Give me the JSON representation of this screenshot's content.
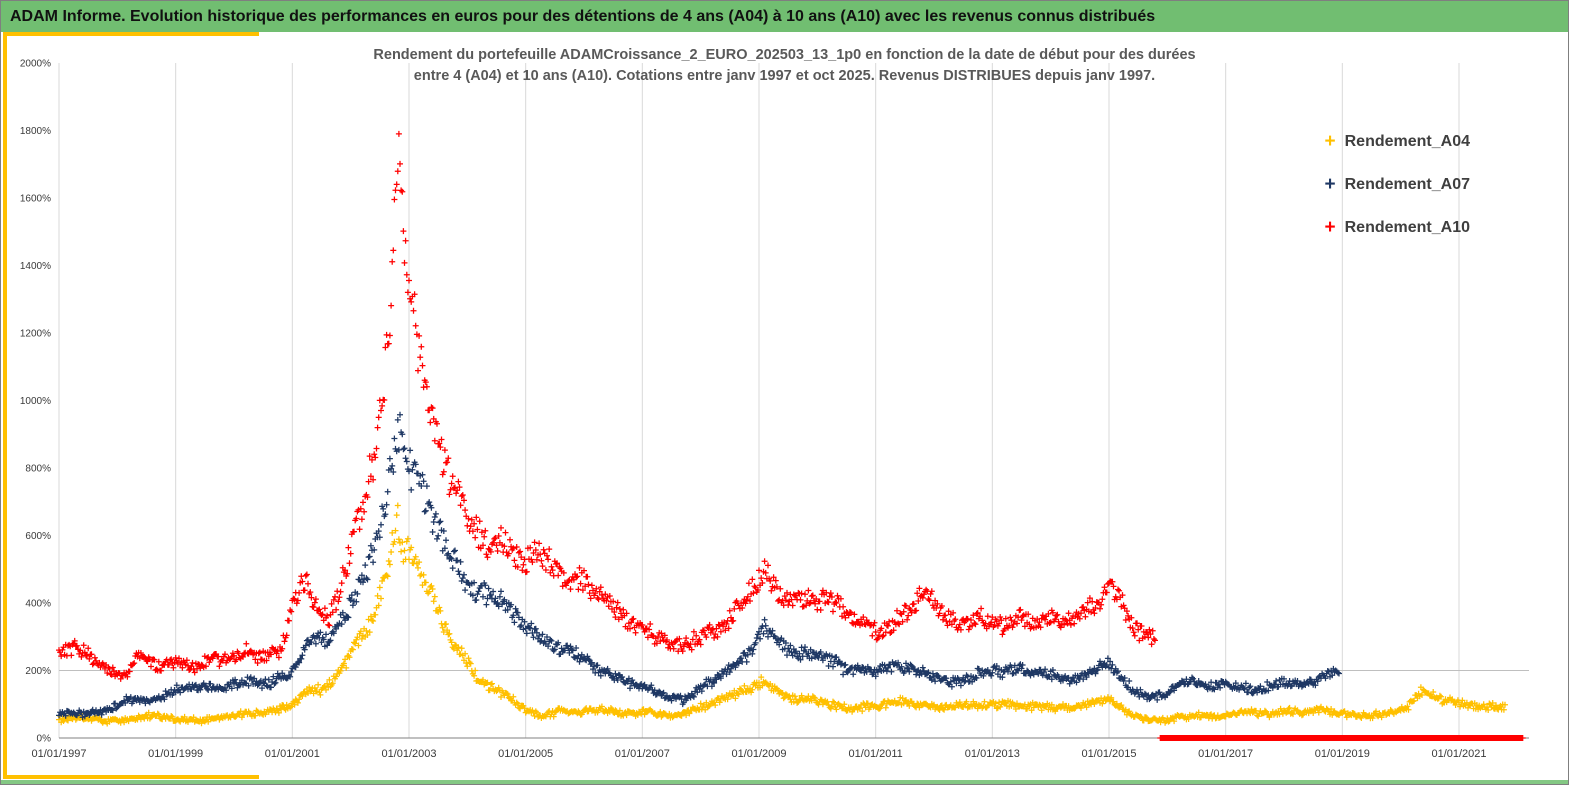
{
  "colors": {
    "header_bg": "#71BE71",
    "footer_bg": "#84C884",
    "accent_gold": "#FFC000",
    "grid": "#D9D9D9",
    "gridline_200": "#BFBFBF",
    "axis": "#808080",
    "tick_text": "#3A3A3A",
    "title_text": "#595959"
  },
  "header": {
    "title": "ADAM Informe. Evolution historique des performances en euros pour des détentions de 4 ans (A04) à 10 ans (A10) avec les revenus connus distribués"
  },
  "chart": {
    "title_line1": "Rendement du portefeuille ADAMCroissance_2_EURO_202503_13_1p0  en fonction de la date de début pour des durées",
    "title_line2": "entre 4 (A04) et 10 ans (A10). Cotations entre janv 1997 et oct 2025. Revenus DISTRIBUES depuis janv 1997.",
    "legend": [
      {
        "label": "Rendement_A04",
        "color": "#FFC000"
      },
      {
        "label": "Rendement_A07",
        "color": "#1F3864"
      },
      {
        "label": "Rendement_A10",
        "color": "#FF0000"
      }
    ]
  },
  "chart_data": {
    "type": "scatter",
    "marker": "+",
    "grid": "vertical-at-x-ticks",
    "legend_position": "top-right-inside",
    "x_axis": {
      "labels": [
        "01/01/1997",
        "01/01/1999",
        "01/01/2001",
        "01/01/2003",
        "01/01/2005",
        "01/01/2007",
        "01/01/2009",
        "01/01/2011",
        "01/01/2013",
        "01/01/2015",
        "01/01/2017",
        "01/01/2019",
        "01/01/2021"
      ],
      "min_year": 1997.0,
      "max_year": 2022.2
    },
    "y_axis": {
      "tick_labels": [
        "0%",
        "200%",
        "400%",
        "600%",
        "800%",
        "1000%",
        "1200%",
        "1400%",
        "1600%",
        "1800%",
        "2000%"
      ],
      "min": 0,
      "max": 2000,
      "tick_step": 200,
      "hline_at": 200
    },
    "sampling_per_year": 52,
    "jitter_rel": 0.07,
    "jitter_abs": 7,
    "series": [
      {
        "name": "Rendement_A04",
        "color": "#FFC000",
        "start": 1997.0,
        "end": 2021.8,
        "keyframes": [
          [
            1997,
            55
          ],
          [
            1997.4,
            62
          ],
          [
            1997.8,
            48
          ],
          [
            1998.2,
            55
          ],
          [
            1998.6,
            68
          ],
          [
            1999,
            55
          ],
          [
            1999.4,
            50
          ],
          [
            1999.8,
            62
          ],
          [
            2000.2,
            72
          ],
          [
            2000.6,
            78
          ],
          [
            2001,
            95
          ],
          [
            2001.3,
            150
          ],
          [
            2001.5,
            140
          ],
          [
            2001.7,
            170
          ],
          [
            2001.9,
            220
          ],
          [
            2002.1,
            280
          ],
          [
            2002.3,
            330
          ],
          [
            2002.5,
            430
          ],
          [
            2002.65,
            520
          ],
          [
            2002.8,
            650
          ],
          [
            2002.9,
            560
          ],
          [
            2003.05,
            560
          ],
          [
            2003.2,
            500
          ],
          [
            2003.4,
            420
          ],
          [
            2003.6,
            330
          ],
          [
            2003.8,
            280
          ],
          [
            2004,
            230
          ],
          [
            2004.2,
            170
          ],
          [
            2004.5,
            145
          ],
          [
            2004.8,
            110
          ],
          [
            2005,
            78
          ],
          [
            2005.3,
            65
          ],
          [
            2005.6,
            80
          ],
          [
            2005.9,
            75
          ],
          [
            2006.2,
            85
          ],
          [
            2006.5,
            78
          ],
          [
            2006.8,
            72
          ],
          [
            2007.1,
            78
          ],
          [
            2007.4,
            68
          ],
          [
            2007.7,
            72
          ],
          [
            2008,
            90
          ],
          [
            2008.3,
            110
          ],
          [
            2008.6,
            130
          ],
          [
            2008.9,
            150
          ],
          [
            2009.05,
            165
          ],
          [
            2009.3,
            135
          ],
          [
            2009.6,
            112
          ],
          [
            2009.9,
            118
          ],
          [
            2010.2,
            100
          ],
          [
            2010.5,
            88
          ],
          [
            2010.8,
            92
          ],
          [
            2011.1,
            98
          ],
          [
            2011.4,
            110
          ],
          [
            2011.7,
            100
          ],
          [
            2012,
            88
          ],
          [
            2012.3,
            92
          ],
          [
            2012.6,
            100
          ],
          [
            2012.9,
            96
          ],
          [
            2013.2,
            102
          ],
          [
            2013.5,
            92
          ],
          [
            2013.8,
            96
          ],
          [
            2014.1,
            88
          ],
          [
            2014.4,
            92
          ],
          [
            2014.7,
            100
          ],
          [
            2015,
            115
          ],
          [
            2015.3,
            80
          ],
          [
            2015.6,
            55
          ],
          [
            2015.9,
            52
          ],
          [
            2016.2,
            60
          ],
          [
            2016.5,
            66
          ],
          [
            2016.8,
            62
          ],
          [
            2017.1,
            72
          ],
          [
            2017.4,
            76
          ],
          [
            2017.7,
            70
          ],
          [
            2018,
            80
          ],
          [
            2018.3,
            76
          ],
          [
            2018.6,
            84
          ],
          [
            2018.9,
            78
          ],
          [
            2019.2,
            68
          ],
          [
            2019.5,
            66
          ],
          [
            2019.8,
            72
          ],
          [
            2020.1,
            88
          ],
          [
            2020.35,
            138
          ],
          [
            2020.6,
            120
          ],
          [
            2020.9,
            105
          ],
          [
            2021.2,
            95
          ],
          [
            2021.5,
            92
          ],
          [
            2021.8,
            95
          ]
        ]
      },
      {
        "name": "Rendement_A07",
        "color": "#1F3864",
        "start": 1997.0,
        "end": 2018.95,
        "keyframes": [
          [
            1997,
            75
          ],
          [
            1997.4,
            70
          ],
          [
            1997.8,
            80
          ],
          [
            1998.2,
            115
          ],
          [
            1998.6,
            110
          ],
          [
            1999,
            140
          ],
          [
            1999.4,
            150
          ],
          [
            1999.8,
            148
          ],
          [
            2000.2,
            168
          ],
          [
            2000.6,
            162
          ],
          [
            2001,
            200
          ],
          [
            2001.2,
            260
          ],
          [
            2001.4,
            300
          ],
          [
            2001.6,
            290
          ],
          [
            2001.8,
            340
          ],
          [
            2002,
            400
          ],
          [
            2002.2,
            470
          ],
          [
            2002.4,
            560
          ],
          [
            2002.6,
            700
          ],
          [
            2002.75,
            860
          ],
          [
            2002.85,
            940
          ],
          [
            2002.95,
            820
          ],
          [
            2003.1,
            780
          ],
          [
            2003.3,
            700
          ],
          [
            2003.5,
            620
          ],
          [
            2003.7,
            560
          ],
          [
            2003.9,
            490
          ],
          [
            2004.1,
            440
          ],
          [
            2004.4,
            420
          ],
          [
            2004.7,
            390
          ],
          [
            2005,
            330
          ],
          [
            2005.3,
            295
          ],
          [
            2005.6,
            262
          ],
          [
            2005.9,
            248
          ],
          [
            2006.2,
            210
          ],
          [
            2006.5,
            185
          ],
          [
            2006.8,
            162
          ],
          [
            2007.1,
            148
          ],
          [
            2007.4,
            122
          ],
          [
            2007.7,
            112
          ],
          [
            2008,
            150
          ],
          [
            2008.3,
            180
          ],
          [
            2008.6,
            220
          ],
          [
            2008.9,
            265
          ],
          [
            2009.1,
            330
          ],
          [
            2009.3,
            290
          ],
          [
            2009.6,
            248
          ],
          [
            2009.9,
            252
          ],
          [
            2010.2,
            232
          ],
          [
            2010.5,
            202
          ],
          [
            2010.8,
            205
          ],
          [
            2011.1,
            198
          ],
          [
            2011.4,
            212
          ],
          [
            2011.7,
            202
          ],
          [
            2012,
            182
          ],
          [
            2012.3,
            162
          ],
          [
            2012.6,
            175
          ],
          [
            2012.9,
            198
          ],
          [
            2013.2,
            192
          ],
          [
            2013.5,
            208
          ],
          [
            2013.8,
            195
          ],
          [
            2014.1,
            180
          ],
          [
            2014.4,
            172
          ],
          [
            2014.7,
            198
          ],
          [
            2015,
            220
          ],
          [
            2015.2,
            180
          ],
          [
            2015.45,
            138
          ],
          [
            2015.7,
            118
          ],
          [
            2015.95,
            128
          ],
          [
            2016.2,
            158
          ],
          [
            2016.45,
            168
          ],
          [
            2016.7,
            152
          ],
          [
            2016.95,
            162
          ],
          [
            2017.2,
            150
          ],
          [
            2017.45,
            142
          ],
          [
            2017.7,
            152
          ],
          [
            2017.95,
            162
          ],
          [
            2018.2,
            158
          ],
          [
            2018.45,
            168
          ],
          [
            2018.7,
            178
          ],
          [
            2018.95,
            205
          ]
        ]
      },
      {
        "name": "Rendement_A10",
        "color": "#FF0000",
        "start": 1997.0,
        "end": 2015.8,
        "clamp_max": 1790,
        "zero_tail": {
          "start": 2015.88,
          "end": 2022.1
        },
        "keyframes": [
          [
            1997,
            255
          ],
          [
            1997.3,
            268
          ],
          [
            1997.6,
            235
          ],
          [
            1997.9,
            195
          ],
          [
            1998.1,
            178
          ],
          [
            1998.4,
            248
          ],
          [
            1998.7,
            215
          ],
          [
            1999,
            232
          ],
          [
            1999.3,
            205
          ],
          [
            1999.6,
            235
          ],
          [
            1999.9,
            228
          ],
          [
            2000.2,
            258
          ],
          [
            2000.5,
            240
          ],
          [
            2000.8,
            262
          ],
          [
            2001.05,
            420
          ],
          [
            2001.2,
            468
          ],
          [
            2001.4,
            400
          ],
          [
            2001.6,
            345
          ],
          [
            2001.8,
            432
          ],
          [
            2002,
            560
          ],
          [
            2002.15,
            660
          ],
          [
            2002.3,
            760
          ],
          [
            2002.45,
            870
          ],
          [
            2002.55,
            1020
          ],
          [
            2002.65,
            1180
          ],
          [
            2002.72,
            1370
          ],
          [
            2002.78,
            1755
          ],
          [
            2002.84,
            1730
          ],
          [
            2002.92,
            1420
          ],
          [
            2003,
            1360
          ],
          [
            2003.1,
            1240
          ],
          [
            2003.2,
            1100
          ],
          [
            2003.3,
            1000
          ],
          [
            2003.42,
            950
          ],
          [
            2003.55,
            830
          ],
          [
            2003.7,
            770
          ],
          [
            2003.85,
            720
          ],
          [
            2004,
            650
          ],
          [
            2004.2,
            600
          ],
          [
            2004.4,
            560
          ],
          [
            2004.6,
            585
          ],
          [
            2004.8,
            545
          ],
          [
            2005,
            520
          ],
          [
            2005.2,
            558
          ],
          [
            2005.4,
            520
          ],
          [
            2005.6,
            482
          ],
          [
            2005.8,
            462
          ],
          [
            2006,
            470
          ],
          [
            2006.2,
            432
          ],
          [
            2006.4,
            402
          ],
          [
            2006.6,
            372
          ],
          [
            2006.8,
            342
          ],
          [
            2007,
            330
          ],
          [
            2007.2,
            302
          ],
          [
            2007.45,
            285
          ],
          [
            2007.7,
            272
          ],
          [
            2007.9,
            292
          ],
          [
            2008.1,
            305
          ],
          [
            2008.35,
            325
          ],
          [
            2008.6,
            378
          ],
          [
            2008.85,
            432
          ],
          [
            2009,
            462
          ],
          [
            2009.12,
            498
          ],
          [
            2009.3,
            442
          ],
          [
            2009.5,
            402
          ],
          [
            2009.75,
            412
          ],
          [
            2010,
            402
          ],
          [
            2010.2,
            418
          ],
          [
            2010.45,
            378
          ],
          [
            2010.7,
            345
          ],
          [
            2010.9,
            332
          ],
          [
            2011.1,
            305
          ],
          [
            2011.3,
            342
          ],
          [
            2011.55,
            375
          ],
          [
            2011.75,
            415
          ],
          [
            2011.9,
            432
          ],
          [
            2012.1,
            382
          ],
          [
            2012.3,
            345
          ],
          [
            2012.55,
            332
          ],
          [
            2012.75,
            362
          ],
          [
            2012.95,
            342
          ],
          [
            2013.15,
            332
          ],
          [
            2013.4,
            362
          ],
          [
            2013.6,
            342
          ],
          [
            2013.8,
            332
          ],
          [
            2014,
            358
          ],
          [
            2014.2,
            335
          ],
          [
            2014.45,
            362
          ],
          [
            2014.65,
            382
          ],
          [
            2014.85,
            405
          ],
          [
            2015,
            448
          ],
          [
            2015.15,
            428
          ],
          [
            2015.35,
            342
          ],
          [
            2015.55,
            312
          ],
          [
            2015.8,
            292
          ]
        ]
      }
    ]
  }
}
